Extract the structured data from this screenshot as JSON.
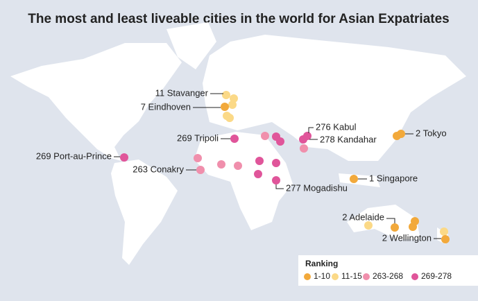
{
  "title": "The most and least liveable cities in the world for Asian Expatriates",
  "labels": [
    "11 Stavanger",
    "7 Eindhoven",
    "269 Tripoli",
    "276 Kabul",
    "278 Kandahar",
    "2 Tokyo",
    "269 Port-au-Prince",
    "263 Conakry",
    "1 Singapore",
    "277 Mogadishu",
    "2 Adelaide",
    "2 Wellington"
  ],
  "legend": {
    "title": "Ranking",
    "items": [
      {
        "label": "1-10",
        "color": "#f2a93b"
      },
      {
        "label": "11-15",
        "color": "#fbd987"
      },
      {
        "label": "263-268",
        "color": "#f08fac"
      },
      {
        "label": "269-278",
        "color": "#e0559a"
      }
    ]
  }
}
